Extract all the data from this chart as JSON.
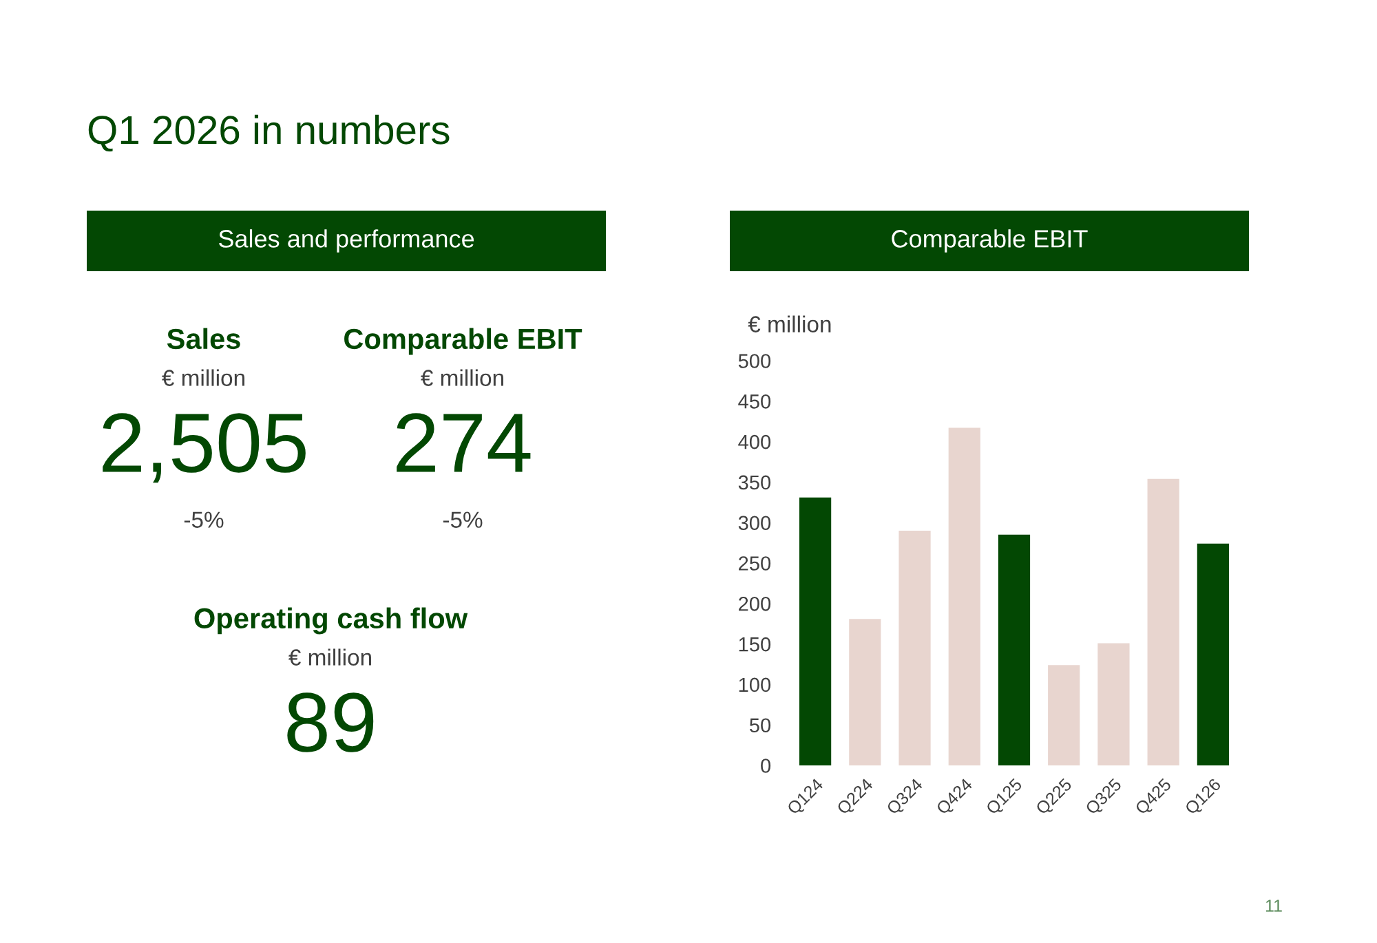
{
  "chart_data": [
    {
      "type": "other",
      "title": "Q1 2026 in numbers",
      "subtitle": "Sales and performance",
      "categories": [
        "Sales",
        "Comparable EBIT",
        "Operating cash flow"
      ],
      "values": [
        2505,
        274,
        89
      ],
      "value_labels": [
        "2,505",
        "274",
        "89"
      ],
      "ylabel": "€ million",
      "annotations": [
        "-5%",
        "-5%"
      ]
    },
    {
      "type": "bar",
      "title": "Comparable EBIT",
      "ylabel": "€ million",
      "categories": [
        "Q124",
        "Q224",
        "Q324",
        "Q424",
        "Q125",
        "Q225",
        "Q325",
        "Q425",
        "Q126"
      ],
      "values": [
        331,
        181,
        290,
        417,
        285,
        124,
        151,
        354,
        274
      ],
      "colors": [
        "#034803",
        "#e8d5cf",
        "#e8d5cf",
        "#e8d5cf",
        "#034803",
        "#e8d5cf",
        "#e8d5cf",
        "#e8d5cf",
        "#034803"
      ],
      "ylim": [
        0,
        500
      ],
      "yticks": [
        0,
        50,
        100,
        150,
        200,
        250,
        300,
        350,
        400,
        450,
        500
      ],
      "annotations": [
        "11"
      ]
    }
  ]
}
